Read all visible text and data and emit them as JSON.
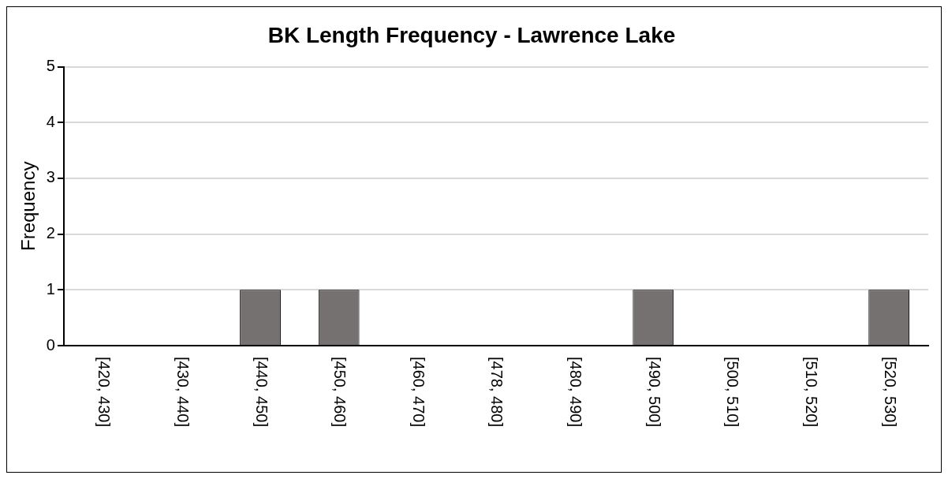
{
  "chart_data": {
    "type": "bar",
    "title": "BK Length Frequency - Lawrence Lake",
    "ylabel": "Frequency",
    "categories": [
      "[420, 430]",
      "[430, 440]",
      "[440, 450]",
      "[450, 460]",
      "[460, 470]",
      "[478, 480]",
      "[480, 490]",
      "[490, 500]",
      "[500, 510]",
      "[510, 520]",
      "[520, 530]"
    ],
    "values": [
      0,
      0,
      1,
      1,
      0,
      0,
      0,
      1,
      0,
      0,
      1
    ],
    "color": "#767171",
    "ylim": [
      0,
      5
    ],
    "yticks": [
      0,
      1,
      2,
      3,
      4,
      5
    ],
    "grid": "y",
    "legend": false
  }
}
